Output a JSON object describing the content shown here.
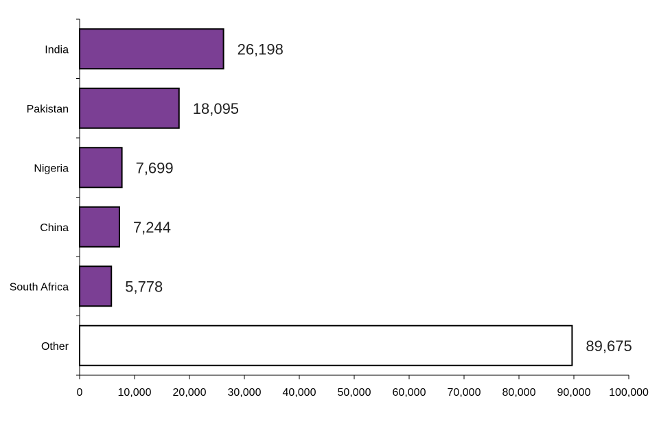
{
  "chart_data": {
    "type": "bar",
    "orientation": "horizontal",
    "categories": [
      "India",
      "Pakistan",
      "Nigeria",
      "China",
      "South Africa",
      "Other"
    ],
    "values": [
      26198,
      18095,
      7699,
      7244,
      5778,
      89675
    ],
    "value_labels": [
      "26,198",
      "18,095",
      "7,699",
      "7,244",
      "5,778",
      "89,675"
    ],
    "bar_colors": [
      "#7b3f94",
      "#7b3f94",
      "#7b3f94",
      "#7b3f94",
      "#7b3f94",
      "#ffffff"
    ],
    "bar_stroke": "#000000",
    "xlim": [
      0,
      100000
    ],
    "xticks": [
      0,
      10000,
      20000,
      30000,
      40000,
      50000,
      60000,
      70000,
      80000,
      90000,
      100000
    ],
    "xtick_labels": [
      "0",
      "10,000",
      "20,000",
      "30,000",
      "40,000",
      "50,000",
      "60,000",
      "70,000",
      "80,000",
      "90,000",
      "100,000"
    ],
    "grid": false,
    "legend": "none",
    "title": "",
    "xlabel": "",
    "ylabel": ""
  }
}
